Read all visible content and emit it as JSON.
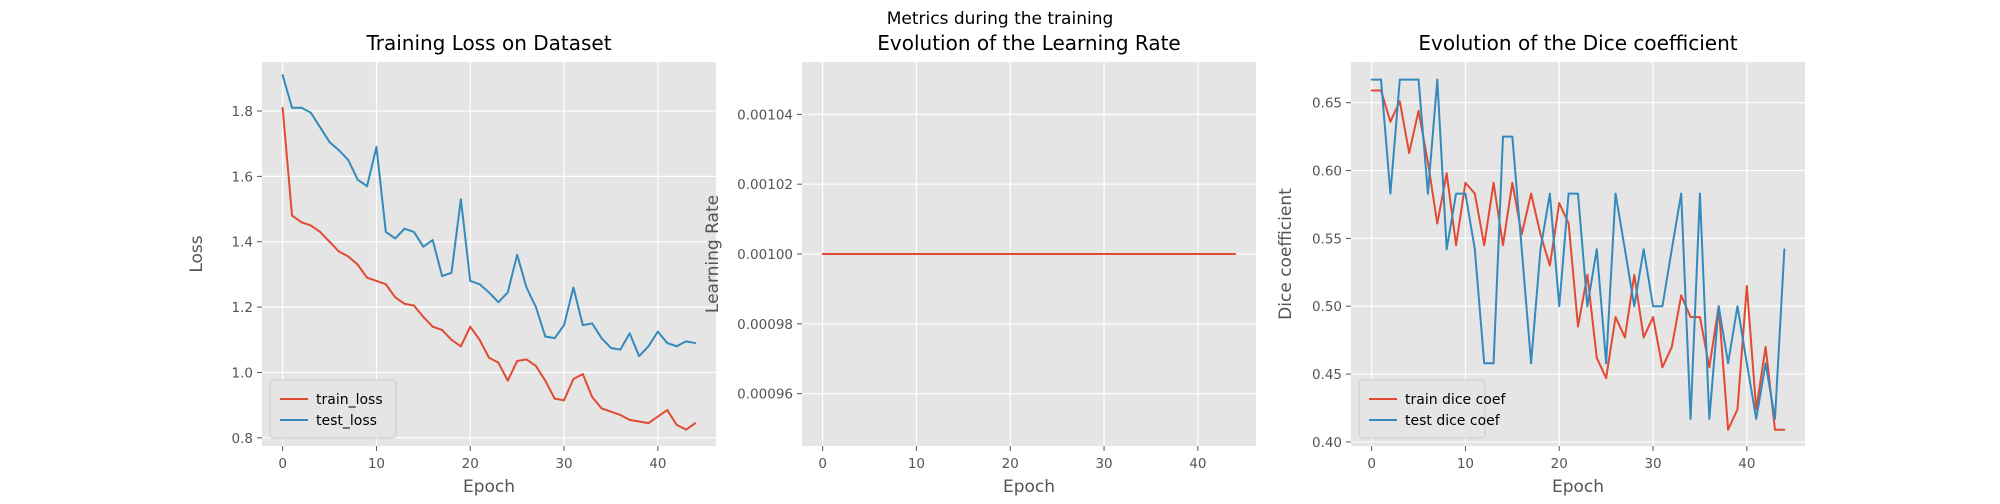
{
  "figure": {
    "suptitle": "Metrics during the training"
  },
  "style": {
    "background": "#E5E5E5",
    "grid": "#FFFFFF",
    "tick_text": "#555555",
    "label_text": "#555555",
    "title_text": "#000000",
    "series_colors": [
      "#E24A33",
      "#348ABD"
    ]
  },
  "chart_data": [
    {
      "type": "line",
      "title": "Training Loss on Dataset",
      "xlabel": "Epoch",
      "ylabel": "Loss",
      "xlim": [
        -2.2,
        46.2
      ],
      "ylim": [
        0.775,
        1.95
      ],
      "xticks": [
        0,
        10,
        20,
        30,
        40
      ],
      "yticks": [
        0.8,
        1.0,
        1.2,
        1.4,
        1.6,
        1.8
      ],
      "ytick_decimals": 1,
      "grid": true,
      "legend": "lower-left",
      "x": [
        0,
        1,
        2,
        3,
        4,
        5,
        6,
        7,
        8,
        9,
        10,
        11,
        12,
        13,
        14,
        15,
        16,
        17,
        18,
        19,
        20,
        21,
        22,
        23,
        24,
        25,
        26,
        27,
        28,
        29,
        30,
        31,
        32,
        33,
        34,
        35,
        36,
        37,
        38,
        39,
        40,
        41,
        42,
        43,
        44
      ],
      "series": [
        {
          "name": "train_loss",
          "values": [
            1.81,
            1.48,
            1.46,
            1.45,
            1.43,
            1.4,
            1.37,
            1.355,
            1.33,
            1.29,
            1.28,
            1.27,
            1.23,
            1.21,
            1.205,
            1.17,
            1.14,
            1.13,
            1.1,
            1.08,
            1.14,
            1.1,
            1.045,
            1.03,
            0.975,
            1.035,
            1.04,
            1.02,
            0.975,
            0.92,
            0.915,
            0.98,
            0.995,
            0.925,
            0.89,
            0.88,
            0.87,
            0.855,
            0.85,
            0.845,
            0.865,
            0.885,
            0.84,
            0.825,
            0.845
          ]
        },
        {
          "name": "test_loss",
          "values": [
            1.91,
            1.81,
            1.81,
            1.795,
            1.75,
            1.705,
            1.68,
            1.65,
            1.59,
            1.57,
            1.69,
            1.43,
            1.41,
            1.44,
            1.43,
            1.385,
            1.405,
            1.295,
            1.305,
            1.53,
            1.28,
            1.27,
            1.245,
            1.215,
            1.245,
            1.36,
            1.26,
            1.2,
            1.11,
            1.105,
            1.145,
            1.26,
            1.145,
            1.15,
            1.105,
            1.075,
            1.07,
            1.12,
            1.05,
            1.08,
            1.125,
            1.09,
            1.08,
            1.095,
            1.09
          ]
        }
      ]
    },
    {
      "type": "line",
      "title": "Evolution of the Learning Rate",
      "xlabel": "Epoch",
      "ylabel": "Learning Rate",
      "xlim": [
        -2.2,
        46.2
      ],
      "ylim": [
        0.000945,
        0.001055
      ],
      "xticks": [
        0,
        10,
        20,
        30,
        40
      ],
      "yticks": [
        0.00096,
        0.00098,
        0.001,
        0.00102,
        0.00104
      ],
      "ytick_decimals": 5,
      "grid": true,
      "legend": "none",
      "x": [
        0,
        44
      ],
      "series": [
        {
          "values": [
            0.001,
            0.001
          ]
        }
      ]
    },
    {
      "type": "line",
      "title": "Evolution of the Dice coefficient",
      "xlabel": "Epoch",
      "ylabel": "Dice coefficient",
      "xlim": [
        -2.2,
        46.2
      ],
      "ylim": [
        0.397,
        0.68
      ],
      "xticks": [
        0,
        10,
        20,
        30,
        40
      ],
      "yticks": [
        0.4,
        0.45,
        0.5,
        0.55,
        0.6,
        0.65
      ],
      "ytick_decimals": 2,
      "grid": true,
      "legend": "lower-left",
      "x": [
        0,
        1,
        2,
        3,
        4,
        5,
        6,
        7,
        8,
        9,
        10,
        11,
        12,
        13,
        14,
        15,
        16,
        17,
        18,
        19,
        20,
        21,
        22,
        23,
        24,
        25,
        26,
        27,
        28,
        29,
        30,
        31,
        32,
        33,
        34,
        35,
        36,
        37,
        38,
        39,
        40,
        41,
        42,
        43,
        44
      ],
      "series": [
        {
          "name": "train dice coef",
          "values": [
            0.659,
            0.659,
            0.636,
            0.651,
            0.613,
            0.644,
            0.606,
            0.561,
            0.598,
            0.545,
            0.591,
            0.583,
            0.545,
            0.591,
            0.545,
            0.591,
            0.553,
            0.583,
            0.553,
            0.53,
            0.576,
            0.561,
            0.485,
            0.523,
            0.462,
            0.447,
            0.492,
            0.477,
            0.523,
            0.477,
            0.492,
            0.455,
            0.47,
            0.508,
            0.492,
            0.492,
            0.455,
            0.5,
            0.409,
            0.424,
            0.515,
            0.424,
            0.47,
            0.409,
            0.409
          ]
        },
        {
          "name": "test dice coef",
          "values": [
            0.667,
            0.667,
            0.583,
            0.667,
            0.667,
            0.667,
            0.583,
            0.667,
            0.542,
            0.583,
            0.583,
            0.542,
            0.458,
            0.458,
            0.625,
            0.625,
            0.542,
            0.458,
            0.542,
            0.583,
            0.5,
            0.583,
            0.583,
            0.5,
            0.542,
            0.458,
            0.583,
            0.542,
            0.5,
            0.542,
            0.5,
            0.5,
            0.542,
            0.583,
            0.417,
            0.583,
            0.417,
            0.5,
            0.458,
            0.5,
            0.458,
            0.417,
            0.458,
            0.417,
            0.542
          ]
        }
      ]
    }
  ]
}
